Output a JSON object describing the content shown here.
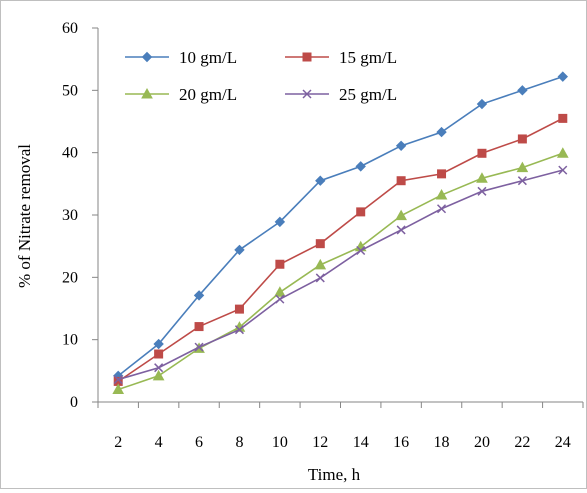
{
  "chart_data": {
    "type": "line",
    "title": "",
    "xlabel": "Time, h",
    "ylabel": "% of Nitrate removal",
    "x": [
      2,
      4,
      6,
      8,
      10,
      12,
      14,
      16,
      18,
      20,
      22,
      24
    ],
    "x_ticks": [
      "2",
      "4",
      "6",
      "8",
      "10",
      "12",
      "14",
      "16",
      "18",
      "20",
      "22",
      "24"
    ],
    "ylim": [
      0,
      60
    ],
    "y_ticks": [
      "0",
      "10",
      "20",
      "30",
      "40",
      "50",
      "60"
    ],
    "grid": false,
    "legend_position": "top-left",
    "series": [
      {
        "name": "10 gm/L",
        "color": "#4a7ebb",
        "marker": "diamond",
        "values": [
          4.2,
          9.3,
          17.1,
          24.4,
          28.9,
          35.5,
          37.8,
          41.1,
          43.3,
          47.8,
          50.0,
          52.2
        ]
      },
      {
        "name": "15 gm/L",
        "color": "#be4b48",
        "marker": "square",
        "values": [
          3.3,
          7.7,
          12.1,
          14.9,
          22.1,
          25.4,
          30.5,
          35.5,
          36.6,
          39.9,
          42.2,
          45.5
        ]
      },
      {
        "name": "20 gm/L",
        "color": "#98b954",
        "marker": "triangle",
        "values": [
          2.0,
          4.2,
          8.6,
          12.0,
          17.6,
          22.0,
          24.9,
          29.9,
          33.2,
          35.9,
          37.6,
          39.9
        ]
      },
      {
        "name": "25 gm/L",
        "color": "#7d60a0",
        "marker": "x",
        "values": [
          3.6,
          5.5,
          8.8,
          11.6,
          16.5,
          19.9,
          24.3,
          27.6,
          31.0,
          33.8,
          35.5,
          37.2
        ]
      }
    ]
  }
}
